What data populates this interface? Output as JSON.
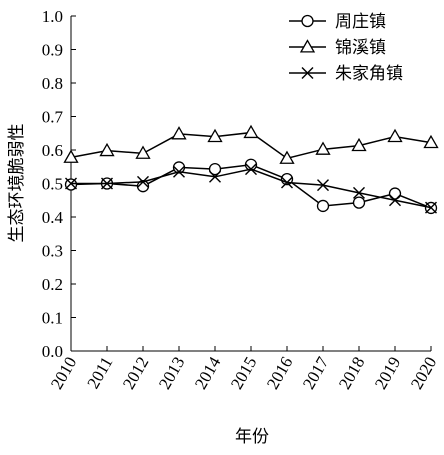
{
  "chart_data": {
    "type": "line",
    "xlabel": "年份",
    "ylabel": "生态环境脆弱性",
    "ylim": [
      0,
      1.0
    ],
    "yticks": [
      "0.0",
      "0.1",
      "0.2",
      "0.3",
      "0.4",
      "0.5",
      "0.6",
      "0.7",
      "0.8",
      "0.9",
      "1.0"
    ],
    "categories": [
      "2010",
      "2011",
      "2012",
      "2013",
      "2014",
      "2015",
      "2016",
      "2017",
      "2018",
      "2019",
      "2020"
    ],
    "legend_position": "top-right",
    "grid": false,
    "series": [
      {
        "name": "周庄镇",
        "marker": "circle",
        "values": [
          0.497,
          0.5,
          0.492,
          0.548,
          0.543,
          0.556,
          0.513,
          0.433,
          0.443,
          0.47,
          0.427
        ]
      },
      {
        "name": "锦溪镇",
        "marker": "triangle",
        "values": [
          0.578,
          0.598,
          0.59,
          0.648,
          0.64,
          0.652,
          0.575,
          0.602,
          0.613,
          0.64,
          0.622
        ]
      },
      {
        "name": "朱家角镇",
        "marker": "x",
        "values": [
          0.5,
          0.5,
          0.505,
          0.535,
          0.52,
          0.543,
          0.503,
          0.495,
          0.472,
          0.45,
          0.428
        ]
      }
    ]
  }
}
